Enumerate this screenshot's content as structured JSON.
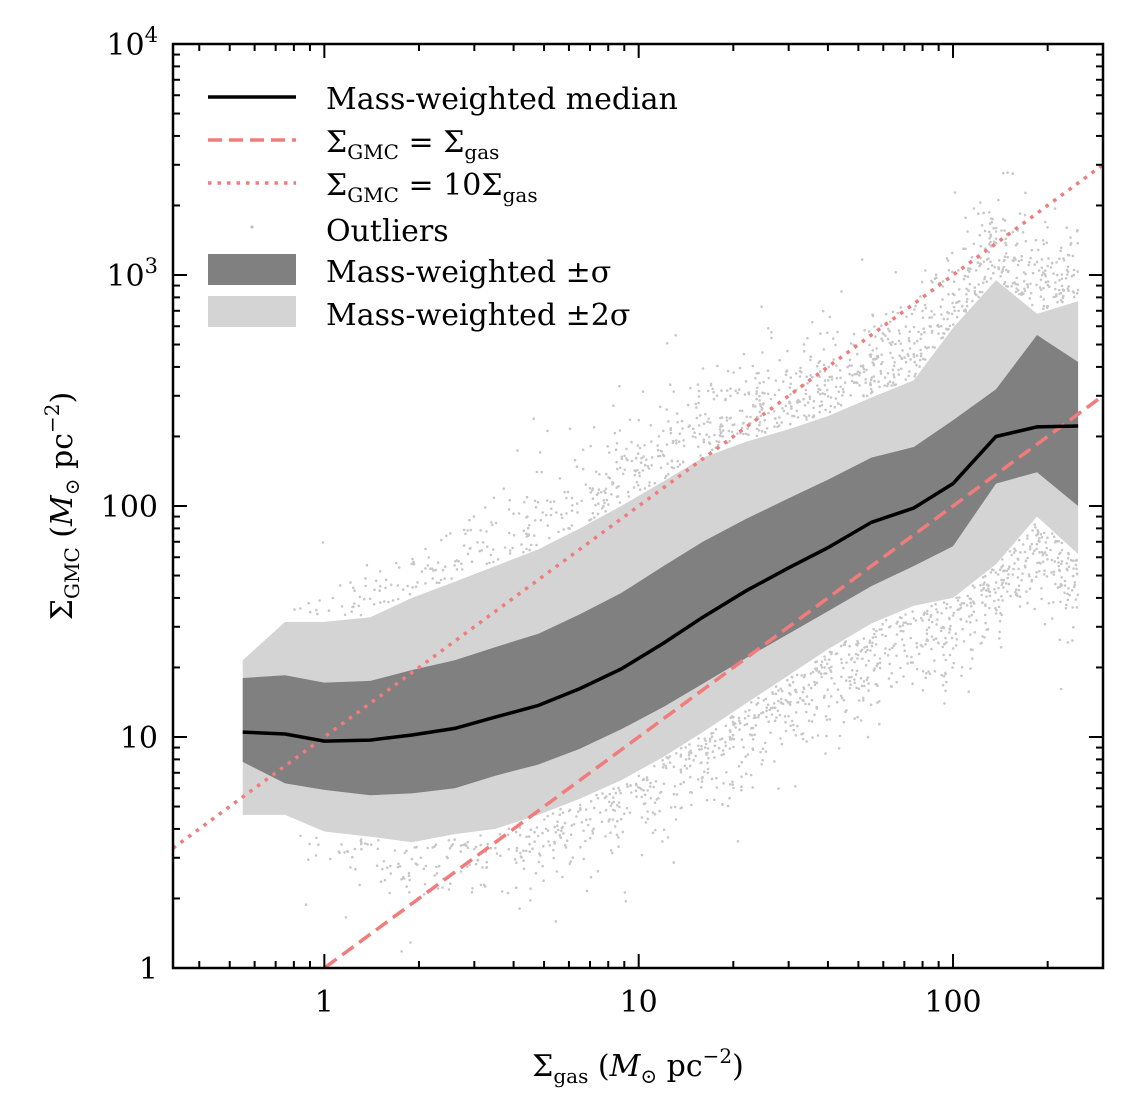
{
  "chart_data": {
    "type": "scatter",
    "xscale": "log",
    "yscale": "log",
    "xlim": [
      0.33,
      300
    ],
    "ylim": [
      1,
      10000
    ],
    "xlabel": {
      "main": "Σ",
      "sub": "gas",
      "unit_open": " (",
      "unit_m": "M",
      "unit_sun": "⊙",
      "unit_pc": " pc",
      "unit_exp": "−2",
      "unit_close": ")"
    },
    "ylabel": {
      "main": "Σ",
      "sub": "GMC",
      "unit_open": " (",
      "unit_m": "M",
      "unit_sun": "⊙",
      "unit_pc": " pc",
      "unit_exp": "−2",
      "unit_close": ")"
    },
    "x_ticks": [
      {
        "value": 1,
        "label": "1"
      },
      {
        "value": 10,
        "label": "10"
      },
      {
        "value": 100,
        "label": "100"
      }
    ],
    "y_ticks": [
      {
        "value": 1,
        "label": "1",
        "exp": ""
      },
      {
        "value": 10,
        "label": "10",
        "exp": ""
      },
      {
        "value": 100,
        "label": "100",
        "exp": ""
      },
      {
        "value": 1000,
        "label": "10",
        "exp": "3"
      },
      {
        "value": 10000,
        "label": "10",
        "exp": "4"
      }
    ],
    "median": {
      "name": "Mass-weighted median",
      "x": [
        0.55,
        0.75,
        1.0,
        1.4,
        1.9,
        2.6,
        3.5,
        4.8,
        6.5,
        8.8,
        12,
        16,
        22,
        30,
        40,
        55,
        75,
        100,
        137,
        185,
        250
      ],
      "y": [
        10.5,
        10.3,
        9.6,
        9.7,
        10.2,
        10.9,
        12.2,
        13.7,
        16.2,
        19.7,
        25.5,
        33,
        43,
        54,
        66,
        85,
        98,
        125,
        200,
        220,
        222
      ]
    },
    "sigma1": {
      "name": "Mass-weighted ±σ",
      "x": [
        0.55,
        0.75,
        1.0,
        1.4,
        1.9,
        2.6,
        3.5,
        4.8,
        6.5,
        8.8,
        12,
        16,
        22,
        30,
        40,
        55,
        75,
        100,
        137,
        185,
        250
      ],
      "lower": [
        7.8,
        6.3,
        5.9,
        5.6,
        5.7,
        6.0,
        6.8,
        7.6,
        8.9,
        10.8,
        13.5,
        17,
        22,
        28,
        35,
        45,
        55,
        67,
        125,
        140,
        100
      ],
      "upper": [
        18,
        18.5,
        17.2,
        17.5,
        19.5,
        21.5,
        24.5,
        28,
        34,
        42,
        55,
        70,
        88,
        108,
        130,
        162,
        180,
        235,
        320,
        550,
        420
      ]
    },
    "sigma2": {
      "name": "Mass-weighted ±2σ",
      "x": [
        0.55,
        0.75,
        1.0,
        1.4,
        1.9,
        2.6,
        3.5,
        4.8,
        6.5,
        8.8,
        12,
        16,
        22,
        30,
        40,
        55,
        75,
        100,
        137,
        185,
        250
      ],
      "lower": [
        4.6,
        4.6,
        3.9,
        3.7,
        3.5,
        3.8,
        4.0,
        4.6,
        5.4,
        6.5,
        8.2,
        10.5,
        14,
        18.5,
        24,
        31,
        37,
        40,
        56,
        90,
        62
      ],
      "upper": [
        21.5,
        31.5,
        31.5,
        33,
        40,
        47,
        55,
        65,
        80,
        100,
        128,
        162,
        190,
        215,
        245,
        295,
        350,
        590,
        950,
        680,
        770
      ]
    },
    "ref_lines": [
      {
        "name": "Σ_GMC = Σ_gas",
        "factor": 1,
        "style": "dashed",
        "color": "#f07c7c"
      },
      {
        "name": "Σ_GMC = 10Σ_gas",
        "factor": 10,
        "style": "dotted",
        "color": "#f07c7c"
      }
    ],
    "outliers": {
      "name": "Outliers",
      "color": "#000000",
      "count": 14000
    },
    "colors": {
      "median": "#000000",
      "sigma1": "#808080",
      "sigma2": "#d4d4d4"
    }
  },
  "legend": {
    "median_label": "Mass-weighted median",
    "eq1_lhs": "Σ",
    "eq1_lhs_sub": "GMC",
    "eq1_eq": " = ",
    "eq1_rhs": "Σ",
    "eq1_rhs_sub": "gas",
    "eq2_lhs": "Σ",
    "eq2_lhs_sub": "GMC",
    "eq2_eq": " = 10",
    "eq2_rhs": "Σ",
    "eq2_rhs_sub": "gas",
    "outliers_label": "Outliers",
    "sigma1_label": "Mass-weighted ±σ",
    "sigma2_label": "Mass-weighted ±2σ"
  }
}
